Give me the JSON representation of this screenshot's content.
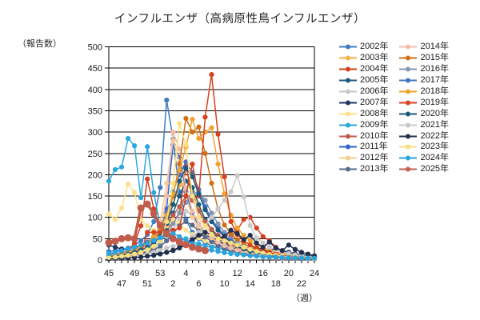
{
  "chart_data": {
    "type": "line",
    "title": "インフルエンザ（高病原性鳥インフルエンザ）",
    "ylabel": "（報告数）",
    "xlabel": "（週）",
    "ylim": [
      0,
      500
    ],
    "ytick_step": 50,
    "grid": true,
    "legend_position": "right",
    "x": [
      "45",
      "46",
      "47",
      "48",
      "49",
      "50",
      "51",
      "52",
      "53",
      "1",
      "2",
      "3",
      "4",
      "5",
      "6",
      "7",
      "8",
      "9",
      "10",
      "11",
      "12",
      "13",
      "14",
      "15",
      "16",
      "17",
      "18",
      "19",
      "20",
      "21",
      "22",
      "23",
      "24"
    ],
    "series": [
      {
        "name": "2002年",
        "color": "#3E7DC2",
        "values": [
          20,
          22,
          25,
          28,
          35,
          45,
          60,
          90,
          170,
          375,
          283,
          160,
          95,
          65,
          50,
          40,
          34,
          28,
          24,
          20,
          17,
          15,
          13,
          11,
          9,
          8,
          7,
          6,
          5,
          4,
          4,
          3,
          3
        ]
      },
      {
        "name": "2003年",
        "color": "#F9B040",
        "values": [
          10,
          12,
          15,
          18,
          22,
          28,
          35,
          45,
          60,
          90,
          130,
          175,
          185,
          160,
          120,
          90,
          70,
          55,
          42,
          33,
          26,
          21,
          17,
          14,
          11,
          9,
          8,
          6,
          5,
          4,
          4,
          3,
          3
        ]
      },
      {
        "name": "2004年",
        "color": "#D6411F",
        "values": [
          8,
          10,
          14,
          20,
          40,
          80,
          190,
          120,
          60,
          70,
          90,
          110,
          220,
          150,
          100,
          80,
          60,
          50,
          45,
          55,
          70,
          95,
          100,
          75,
          55,
          45,
          30,
          22,
          16,
          12,
          9,
          7,
          5
        ]
      },
      {
        "name": "2005年",
        "color": "#1C5A7D",
        "values": [
          5,
          6,
          8,
          10,
          13,
          17,
          22,
          30,
          45,
          70,
          110,
          150,
          185,
          170,
          130,
          95,
          70,
          52,
          40,
          30,
          24,
          19,
          15,
          12,
          10,
          8,
          7,
          6,
          5,
          4,
          3,
          3,
          2
        ]
      },
      {
        "name": "2006年",
        "color": "#C9C9C9",
        "values": [
          4,
          5,
          6,
          8,
          10,
          13,
          17,
          22,
          30,
          45,
          70,
          95,
          115,
          105,
          85,
          65,
          50,
          38,
          29,
          22,
          17,
          14,
          11,
          9,
          7,
          6,
          5,
          4,
          4,
          3,
          3,
          2,
          2
        ]
      },
      {
        "name": "2007年",
        "color": "#203864",
        "values": [
          35,
          30,
          26,
          22,
          20,
          18,
          17,
          16,
          15,
          18,
          22,
          28,
          35,
          45,
          55,
          60,
          52,
          44,
          38,
          42,
          35,
          30,
          26,
          30,
          24,
          20,
          28,
          22,
          18,
          15,
          12,
          10,
          8
        ]
      },
      {
        "name": "2008年",
        "color": "#FFE08A",
        "values": [
          108,
          95,
          122,
          178,
          158,
          95,
          80,
          70,
          60,
          80,
          95,
          85,
          70,
          60,
          52,
          45,
          40,
          35,
          30,
          26,
          22,
          19,
          16,
          14,
          12,
          10,
          8,
          7,
          6,
          5,
          4,
          3,
          3
        ]
      },
      {
        "name": "2009年",
        "color": "#2BA7E0",
        "values": [
          185,
          212,
          218,
          285,
          268,
          146,
          266,
          158,
          80,
          60,
          52,
          46,
          50,
          42,
          38,
          33,
          30,
          28,
          25,
          22,
          20,
          18,
          15,
          14,
          12,
          10,
          9,
          8,
          7,
          6,
          5,
          4,
          3
        ]
      },
      {
        "name": "2010年",
        "color": "#C05C4C",
        "values": [
          12,
          14,
          17,
          20,
          25,
          32,
          40,
          52,
          65,
          85,
          105,
          125,
          150,
          140,
          115,
          90,
          72,
          58,
          46,
          37,
          30,
          25,
          20,
          17,
          14,
          12,
          10,
          8,
          7,
          6,
          5,
          4,
          3
        ]
      },
      {
        "name": "2011年",
        "color": "#2E63CE",
        "values": [
          6,
          7,
          9,
          11,
          14,
          18,
          24,
          35,
          60,
          120,
          270,
          240,
          160,
          110,
          80,
          60,
          48,
          38,
          30,
          25,
          20,
          17,
          14,
          12,
          10,
          8,
          7,
          6,
          5,
          4,
          4,
          3,
          3
        ]
      },
      {
        "name": "2012年",
        "color": "#F6CE8F",
        "values": [
          8,
          9,
          11,
          14,
          18,
          24,
          32,
          45,
          90,
          180,
          280,
          230,
          150,
          100,
          75,
          58,
          45,
          36,
          29,
          23,
          19,
          16,
          13,
          11,
          9,
          8,
          7,
          6,
          5,
          4,
          3,
          3,
          2
        ]
      },
      {
        "name": "2013年",
        "color": "#5A6B8C",
        "values": [
          5,
          6,
          7,
          9,
          11,
          14,
          18,
          24,
          32,
          45,
          62,
          80,
          90,
          82,
          68,
          54,
          43,
          34,
          27,
          22,
          18,
          15,
          12,
          10,
          8,
          7,
          6,
          5,
          4,
          4,
          3,
          3,
          2
        ]
      },
      {
        "name": "2014年",
        "color": "#F2BCA8",
        "values": [
          10,
          12,
          14,
          17,
          21,
          26,
          33,
          45,
          70,
          150,
          300,
          260,
          170,
          115,
          85,
          65,
          52,
          42,
          34,
          28,
          23,
          19,
          16,
          13,
          11,
          9,
          8,
          7,
          6,
          5,
          4,
          3,
          3
        ]
      },
      {
        "name": "2015年",
        "color": "#CE6F14",
        "values": [
          8,
          10,
          12,
          15,
          20,
          28,
          40,
          52,
          65,
          95,
          150,
          225,
          332,
          300,
          312,
          250,
          180,
          120,
          82,
          62,
          48,
          38,
          30,
          24,
          20,
          16,
          13,
          11,
          9,
          7,
          6,
          5,
          4
        ]
      },
      {
        "name": "2016年",
        "color": "#8496B0",
        "values": [
          6,
          7,
          9,
          11,
          14,
          18,
          24,
          32,
          42,
          60,
          85,
          110,
          135,
          155,
          160,
          140,
          110,
          85,
          65,
          50,
          39,
          31,
          25,
          20,
          16,
          13,
          11,
          9,
          7,
          6,
          5,
          4,
          3
        ]
      },
      {
        "name": "2017年",
        "color": "#4472C4",
        "values": [
          12,
          14,
          17,
          21,
          26,
          33,
          42,
          55,
          75,
          110,
          160,
          200,
          230,
          205,
          165,
          125,
          95,
          74,
          58,
          45,
          36,
          29,
          23,
          19,
          15,
          12,
          10,
          8,
          7,
          6,
          5,
          4,
          3
        ]
      },
      {
        "name": "2018年",
        "color": "#F0A22E",
        "values": [
          10,
          12,
          15,
          19,
          24,
          31,
          40,
          55,
          72,
          105,
          155,
          210,
          265,
          330,
          285,
          300,
          310,
          225,
          155,
          105,
          75,
          58,
          45,
          36,
          29,
          23,
          19,
          15,
          12,
          10,
          8,
          6,
          5
        ]
      },
      {
        "name": "2019年",
        "color": "#D6411F",
        "values": [
          5,
          5,
          8,
          10,
          12,
          15,
          65,
          65,
          65,
          65,
          70,
          75,
          150,
          225,
          150,
          335,
          435,
          295,
          195,
          90,
          60,
          45,
          35,
          28,
          22,
          18,
          14,
          11,
          9,
          7,
          6,
          5,
          4
        ]
      },
      {
        "name": "2020年",
        "color": "#1C5A7D",
        "values": [
          8,
          9,
          11,
          14,
          18,
          23,
          30,
          40,
          55,
          85,
          130,
          185,
          215,
          195,
          155,
          118,
          90,
          70,
          54,
          42,
          33,
          26,
          21,
          17,
          14,
          11,
          9,
          8,
          6,
          5,
          4,
          4,
          3
        ]
      },
      {
        "name": "2021年",
        "color": "#C9C9C9",
        "values": [
          5,
          6,
          7,
          8,
          10,
          12,
          15,
          18,
          22,
          28,
          32,
          38,
          45,
          55,
          65,
          80,
          100,
          120,
          140,
          160,
          198,
          148,
          81,
          52,
          40,
          30,
          24,
          19,
          15,
          12,
          10,
          8,
          7
        ]
      },
      {
        "name": "2022年",
        "color": "#22304E",
        "values": [
          3,
          4,
          4,
          5,
          6,
          7,
          9,
          11,
          14,
          18,
          23,
          30,
          38,
          48,
          58,
          65,
          60,
          52,
          55,
          70,
          62,
          48,
          58,
          40,
          30,
          42,
          28,
          22,
          35,
          25,
          18,
          14,
          10
        ]
      },
      {
        "name": "2023年",
        "color": "#FBDF7E",
        "values": [
          6,
          7,
          9,
          11,
          14,
          18,
          24,
          32,
          45,
          90,
          180,
          320,
          270,
          150,
          100,
          80,
          60,
          50,
          45,
          40,
          35,
          30,
          25,
          20,
          16,
          13,
          11,
          9,
          7,
          6,
          5,
          4,
          3
        ]
      },
      {
        "name": "2024年",
        "color": "#2AA3DE",
        "values": [
          15,
          18,
          22,
          26,
          30,
          35,
          40,
          46,
          52,
          58,
          62,
          55,
          45,
          38,
          32,
          27,
          23,
          20,
          17,
          15,
          13,
          12,
          10,
          9,
          8,
          7,
          7,
          6,
          6,
          5,
          5,
          4,
          4
        ]
      },
      {
        "name": "2025年",
        "color": "#C05C4C",
        "thick": true,
        "values": [
          41,
          44,
          50,
          52,
          50,
          122,
          131,
          109,
          81,
          62,
          50,
          42,
          36,
          30,
          26,
          22,
          null,
          null,
          null,
          null,
          null,
          null,
          null,
          null,
          null,
          null,
          null,
          null,
          null,
          null,
          null,
          null,
          null
        ]
      }
    ]
  }
}
